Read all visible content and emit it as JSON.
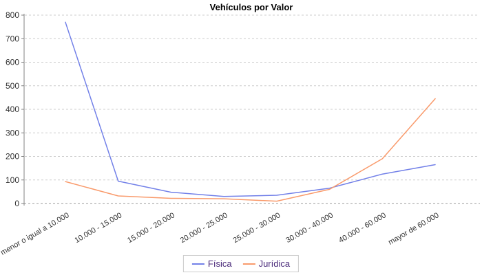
{
  "chart_data": {
    "type": "line",
    "title": "Vehículos por Valor",
    "categories": [
      "menor o igual a 10.000",
      "10.000 - 15.000",
      "15.000 - 20.000",
      "20.000 - 25.000",
      "25.000 - 30.000",
      "30.000 - 40.000",
      "40.000 - 60.000",
      "mayor de 60.000"
    ],
    "series": [
      {
        "name": "Física",
        "color": "#7280E8",
        "values": [
          770,
          95,
          48,
          30,
          35,
          65,
          125,
          165
        ]
      },
      {
        "name": "Jurídica",
        "color": "#F99A6B",
        "values": [
          93,
          32,
          22,
          20,
          10,
          60,
          190,
          445
        ]
      }
    ],
    "ylim": [
      0,
      800
    ],
    "ytick_step": 100,
    "ytick_labels": [
      "0",
      "100",
      "200",
      "300",
      "400",
      "500",
      "600",
      "700",
      "800"
    ],
    "grid": true,
    "legend_position": "bottom"
  },
  "styles": {
    "background": "#ffffff",
    "grid_color": "#cccccc",
    "zero_line_color": "#999999",
    "axis_color": "#808080",
    "tick_label_color": "#333333",
    "x_label_color": "#333333",
    "title_color": "#000000",
    "legend_text_color": "#4a2a7a",
    "legend_border_color": "#cccccc"
  }
}
